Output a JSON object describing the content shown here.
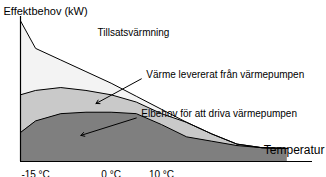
{
  "chart_data": {
    "type": "area",
    "stacked": true,
    "x_label": "Temperatur",
    "y_label": "Effektbehov (kW)",
    "x": [
      -18,
      -15,
      -10,
      -5,
      0,
      5,
      10,
      15,
      20,
      25,
      30,
      35
    ],
    "series": [
      {
        "name": "Elbehov för att driva värmepumpen",
        "color": "#7f7f7f",
        "values": [
          20,
          28,
          33,
          34,
          34,
          33,
          25.5,
          17,
          14,
          11,
          9.5,
          9
        ]
      },
      {
        "name": "Värme levererat från värmepumpen",
        "color": "#c9c9c9",
        "values": [
          26,
          21,
          18,
          15,
          12,
          8,
          7.5,
          10,
          5,
          1,
          0,
          0
        ]
      },
      {
        "name": "Tillsatsvärmning",
        "color": "#f3f3f3",
        "values": [
          51,
          29,
          19,
          13,
          8,
          4,
          3,
          0,
          0,
          0,
          0,
          0
        ]
      }
    ],
    "xlim": [
      -18,
      40
    ],
    "xticks": [
      {
        "value": -15,
        "label": "-15 °C"
      },
      {
        "value": 0,
        "label": "0 °C"
      },
      {
        "value": 10,
        "label": "10 °C"
      }
    ],
    "ylim": [
      0,
      100
    ],
    "yticks": [],
    "tick_labels": "x",
    "grid": false
  }
}
